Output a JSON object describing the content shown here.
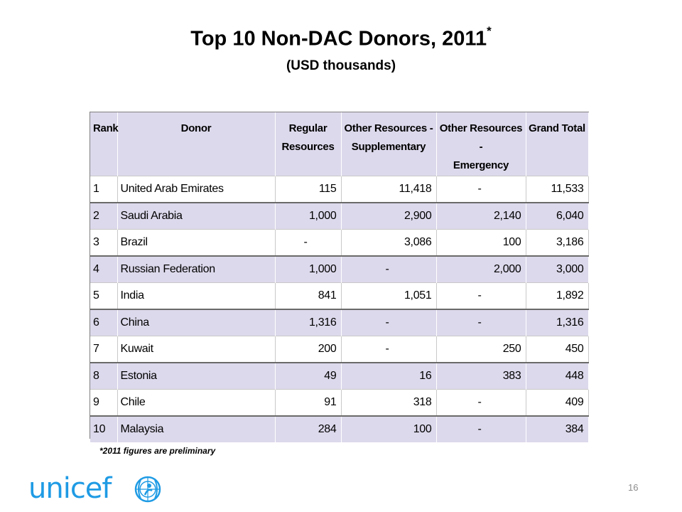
{
  "title": "Top 10 Non-DAC Donors, 2011",
  "title_mark": "*",
  "subtitle": "(USD thousands)",
  "table": {
    "headers": {
      "rank": "Rank",
      "donor": "Donor",
      "regular": [
        "Regular",
        "Resources"
      ],
      "supplementary": [
        "Other Resources -",
        "Supplementary"
      ],
      "emergency": [
        "Other Resources -",
        "Emergency"
      ],
      "total": "Grand Total"
    },
    "rows": [
      {
        "rank": "1",
        "donor": "United Arab Emirates",
        "regular": "115",
        "supplementary": "11,418",
        "emergency": "-",
        "total": "11,533"
      },
      {
        "rank": "2",
        "donor": "Saudi Arabia",
        "regular": "1,000",
        "supplementary": "2,900",
        "emergency": "2,140",
        "total": "6,040"
      },
      {
        "rank": "3",
        "donor": "Brazil",
        "regular": "-",
        "supplementary": "3,086",
        "emergency": "100",
        "total": "3,186"
      },
      {
        "rank": "4",
        "donor": "Russian Federation",
        "regular": "1,000",
        "supplementary": "-",
        "emergency": "2,000",
        "total": "3,000"
      },
      {
        "rank": "5",
        "donor": "India",
        "regular": "841",
        "supplementary": "1,051",
        "emergency": "-",
        "total": "1,892"
      },
      {
        "rank": "6",
        "donor": "China",
        "regular": "1,316",
        "supplementary": "-",
        "emergency": "-",
        "total": "1,316"
      },
      {
        "rank": "7",
        "donor": "Kuwait",
        "regular": "200",
        "supplementary": "-",
        "emergency": "250",
        "total": "450"
      },
      {
        "rank": "8",
        "donor": "Estonia",
        "regular": "49",
        "supplementary": "16",
        "emergency": "383",
        "total": "448"
      },
      {
        "rank": "9",
        "donor": "Chile",
        "regular": "91",
        "supplementary": "318",
        "emergency": "-",
        "total": "409"
      },
      {
        "rank": "10",
        "donor": "Malaysia",
        "regular": "284",
        "supplementary": "100",
        "emergency": "-",
        "total": "384"
      }
    ]
  },
  "footnote": "*2011 figures are preliminary",
  "logo": {
    "text": "unicef",
    "icon": "unicef-emblem-icon",
    "color": "#1f9be4"
  },
  "page_number": "16",
  "colors": {
    "header_fill": "#ddd9ec",
    "shaded_row": "#ddd9ec"
  }
}
